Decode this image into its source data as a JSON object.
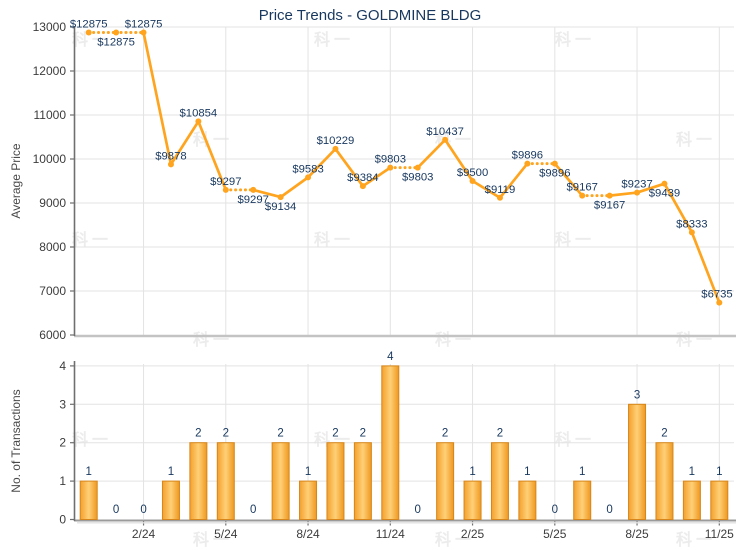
{
  "watermark": {
    "text": "科一"
  },
  "colors": {
    "title": "#17375e",
    "label": "#17375e",
    "line": "#ffa41e",
    "bar_light": "#ffd077",
    "bar_edge": "#f4a02d",
    "bar_edge2": "#ef981f",
    "bar_border": "#d6861a",
    "grid": "#e3e3e3",
    "axis": "#8a8a8a",
    "axis_dark": "#6f6f6f",
    "tick_text": "#3c3c3c",
    "watermark": "#ececec"
  },
  "chart_data": [
    {
      "type": "line",
      "title": "Price Trends - GOLDMINE BLDG",
      "ylabel": "Average Price",
      "ylim": [
        6000,
        13000
      ],
      "yticks": [
        6000,
        7000,
        8000,
        9000,
        10000,
        11000,
        12000,
        13000
      ],
      "grid": "on",
      "values": [
        12875,
        12875,
        12875,
        9878,
        10854,
        9297,
        9297,
        9134,
        9583,
        10229,
        9384,
        9803,
        9803,
        10437,
        9500,
        9119,
        9896,
        9896,
        9167,
        9167,
        9237,
        9439,
        8333,
        6735
      ],
      "point_labels": [
        "$12875",
        "$12875",
        "$12875",
        "$9878",
        "$10854",
        "$9297",
        "$9297",
        "$9134",
        "$9583",
        "$10229",
        "$9384",
        "$9803",
        "$9803",
        "$10437",
        "$9500",
        "$9119",
        "$9896",
        "$9896",
        "$9167",
        "$9167",
        "$9237",
        "$9439",
        "$8333",
        "$6735"
      ],
      "label_side": [
        "above",
        "below",
        "above",
        "above",
        "above",
        "above",
        "below",
        "below",
        "above",
        "above",
        "above",
        "above",
        "below",
        "above",
        "above",
        "above",
        "above",
        "below",
        "above",
        "below",
        "above",
        "below",
        "above",
        "above"
      ],
      "dotted_points": [
        1,
        2,
        6,
        12,
        17,
        19
      ]
    },
    {
      "type": "bar",
      "ylabel": "No. of Transactions",
      "ylim": [
        0,
        4
      ],
      "yticks": [
        0,
        1,
        2,
        3,
        4
      ],
      "grid": "on",
      "x_labels": [
        "",
        "",
        "2/24",
        "",
        "",
        "5/24",
        "",
        "",
        "8/24",
        "",
        "",
        "11/24",
        "",
        "",
        "2/25",
        "",
        "",
        "5/25",
        "",
        "",
        "8/25",
        "",
        "",
        "11/25"
      ],
      "values": [
        1,
        0,
        0,
        1,
        2,
        2,
        0,
        2,
        1,
        2,
        2,
        4,
        0,
        2,
        1,
        2,
        1,
        0,
        1,
        0,
        3,
        2,
        1,
        1
      ]
    }
  ]
}
